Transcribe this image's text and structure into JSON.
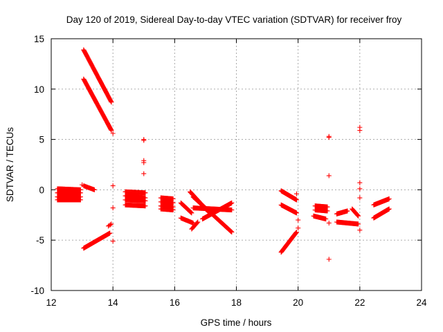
{
  "chart_data": {
    "type": "scatter",
    "title": "Day 120 of 2019, Sidereal Day-to-day VTEC variation (SDTVAR) for receiver froy",
    "xlabel": "GPS time / hours",
    "ylabel": "SDTVAR / TECUs",
    "xlim": [
      12,
      24
    ],
    "ylim": [
      -10,
      15
    ],
    "xticks": [
      12,
      14,
      16,
      18,
      20,
      22,
      24
    ],
    "yticks": [
      -10,
      -5,
      0,
      5,
      10,
      15
    ],
    "grid": true,
    "marker": "+",
    "color": "#ff0000",
    "segments": [
      {
        "x0": 12.2,
        "x1": 12.95,
        "y0": 0.1,
        "y1": 0.0,
        "step": 0.015
      },
      {
        "x0": 12.2,
        "x1": 12.95,
        "y0": -0.3,
        "y1": -0.3,
        "step": 0.015
      },
      {
        "x0": 12.2,
        "x1": 12.95,
        "y0": -0.7,
        "y1": -0.7,
        "step": 0.015
      },
      {
        "x0": 12.2,
        "x1": 12.95,
        "y0": -1.0,
        "y1": -1.0,
        "step": 0.015
      },
      {
        "x0": 13.05,
        "x1": 13.4,
        "y0": 0.4,
        "y1": 0.0,
        "step": 0.02
      },
      {
        "x0": 13.05,
        "x1": 13.95,
        "y0": 13.9,
        "y1": 8.7,
        "step": 0.012
      },
      {
        "x0": 13.05,
        "x1": 13.95,
        "y0": 11.0,
        "y1": 5.9,
        "step": 0.012
      },
      {
        "x0": 13.05,
        "x1": 13.9,
        "y0": -5.8,
        "y1": -4.3,
        "step": 0.012
      },
      {
        "x0": 13.85,
        "x1": 13.95,
        "y0": -3.6,
        "y1": -3.4,
        "step": 0.03
      },
      {
        "x0": 14.4,
        "x1": 15.05,
        "y0": -0.2,
        "y1": -0.3,
        "step": 0.015
      },
      {
        "x0": 14.4,
        "x1": 15.05,
        "y0": -0.6,
        "y1": -0.8,
        "step": 0.015
      },
      {
        "x0": 14.4,
        "x1": 15.05,
        "y0": -1.0,
        "y1": -1.1,
        "step": 0.015
      },
      {
        "x0": 14.4,
        "x1": 15.05,
        "y0": -1.5,
        "y1": -1.6,
        "step": 0.015
      },
      {
        "x0": 15.55,
        "x1": 15.95,
        "y0": -0.8,
        "y1": -0.9,
        "step": 0.015
      },
      {
        "x0": 15.55,
        "x1": 15.95,
        "y0": -1.2,
        "y1": -1.3,
        "step": 0.015
      },
      {
        "x0": 15.55,
        "x1": 15.95,
        "y0": -1.6,
        "y1": -1.7,
        "step": 0.015
      },
      {
        "x0": 15.55,
        "x1": 15.95,
        "y0": -1.9,
        "y1": -2.0,
        "step": 0.015
      },
      {
        "x0": 16.2,
        "x1": 16.55,
        "y0": -1.3,
        "y1": -2.3,
        "step": 0.015
      },
      {
        "x0": 16.2,
        "x1": 16.6,
        "y0": -2.8,
        "y1": -3.3,
        "step": 0.02
      },
      {
        "x0": 16.55,
        "x1": 16.75,
        "y0": -3.9,
        "y1": -3.2,
        "step": 0.02
      },
      {
        "x0": 16.5,
        "x1": 17.1,
        "y0": -0.2,
        "y1": -2.2,
        "step": 0.012
      },
      {
        "x0": 16.6,
        "x1": 17.85,
        "y0": -0.7,
        "y1": -4.2,
        "step": 0.012
      },
      {
        "x0": 16.9,
        "x1": 17.85,
        "y0": -2.9,
        "y1": -1.3,
        "step": 0.012
      },
      {
        "x0": 16.6,
        "x1": 17.85,
        "y0": -1.8,
        "y1": -2.0,
        "step": 0.015
      },
      {
        "x0": 19.45,
        "x1": 19.95,
        "y0": -0.1,
        "y1": -1.0,
        "step": 0.012
      },
      {
        "x0": 19.45,
        "x1": 19.95,
        "y0": -1.5,
        "y1": -2.3,
        "step": 0.012
      },
      {
        "x0": 19.45,
        "x1": 19.95,
        "y0": -6.2,
        "y1": -4.2,
        "step": 0.012
      },
      {
        "x0": 20.55,
        "x1": 20.95,
        "y0": -1.6,
        "y1": -1.7,
        "step": 0.015
      },
      {
        "x0": 20.55,
        "x1": 20.95,
        "y0": -2.0,
        "y1": -2.1,
        "step": 0.015
      },
      {
        "x0": 20.5,
        "x1": 20.9,
        "y0": -2.6,
        "y1": -2.9,
        "step": 0.015
      },
      {
        "x0": 21.25,
        "x1": 21.6,
        "y0": -2.4,
        "y1": -2.1,
        "step": 0.015
      },
      {
        "x0": 21.25,
        "x1": 21.95,
        "y0": -3.2,
        "y1": -3.4,
        "step": 0.015
      },
      {
        "x0": 21.75,
        "x1": 21.95,
        "y0": -1.9,
        "y1": -2.6,
        "step": 0.015
      },
      {
        "x0": 22.45,
        "x1": 22.95,
        "y0": -1.5,
        "y1": -0.9,
        "step": 0.012
      },
      {
        "x0": 22.45,
        "x1": 22.95,
        "y0": -2.8,
        "y1": -1.9,
        "step": 0.012
      }
    ],
    "points": [
      [
        13.0,
        0.5
      ],
      [
        14.0,
        5.6
      ],
      [
        14.0,
        0.4
      ],
      [
        14.0,
        -1.8
      ],
      [
        14.0,
        -5.1
      ],
      [
        15.0,
        5.0
      ],
      [
        15.0,
        4.9
      ],
      [
        15.0,
        2.9
      ],
      [
        15.0,
        2.7
      ],
      [
        15.0,
        1.6
      ],
      [
        19.95,
        -0.4
      ],
      [
        20.0,
        -3.0
      ],
      [
        20.0,
        -3.8
      ],
      [
        21.0,
        5.3
      ],
      [
        21.0,
        5.2
      ],
      [
        21.0,
        1.4
      ],
      [
        21.0,
        -3.3
      ],
      [
        21.0,
        -6.9
      ],
      [
        22.0,
        6.2
      ],
      [
        22.0,
        5.9
      ],
      [
        22.0,
        0.7
      ],
      [
        22.0,
        0.1
      ],
      [
        22.0,
        -0.8
      ],
      [
        22.0,
        -4.0
      ]
    ]
  }
}
